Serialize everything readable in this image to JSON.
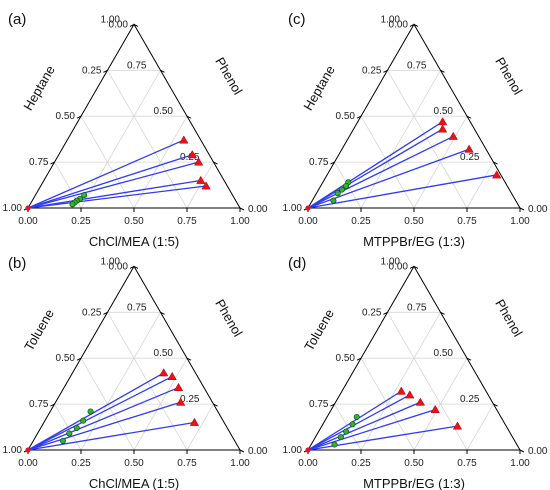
{
  "chart_data": [
    {
      "type": "ternary",
      "panel_label": "(a)",
      "axes": {
        "bottom": "ChCl/MEA (1:5)",
        "right": "Phenol",
        "left": "Heptane"
      },
      "ticks": [
        "0.00",
        "0.25",
        "0.50",
        "0.75",
        "1.00"
      ],
      "grid": true,
      "feed_point": {
        "des": 0.0,
        "phenol": 0.0
      },
      "tie_lines": [
        {
          "raffinate": {
            "des": 0.23,
            "phenol": 0.07
          },
          "extract": {
            "des": 0.55,
            "phenol": 0.37
          }
        },
        {
          "raffinate": {
            "des": 0.22,
            "phenol": 0.05
          },
          "extract": {
            "des": 0.63,
            "phenol": 0.29
          }
        },
        {
          "raffinate": {
            "des": 0.21,
            "phenol": 0.04
          },
          "extract": {
            "des": 0.68,
            "phenol": 0.25
          }
        },
        {
          "raffinate": {
            "des": 0.205,
            "phenol": 0.03
          },
          "extract": {
            "des": 0.74,
            "phenol": 0.15
          }
        },
        {
          "raffinate": {
            "des": 0.2,
            "phenol": 0.02
          },
          "extract": {
            "des": 0.78,
            "phenol": 0.12
          }
        }
      ]
    },
    {
      "type": "ternary",
      "panel_label": "(c)",
      "axes": {
        "bottom": "MTPPBr/EG (1:3)",
        "right": "Phenol",
        "left": "Heptane"
      },
      "ticks": [
        "0.00",
        "0.25",
        "0.50",
        "0.75",
        "1.00"
      ],
      "grid": true,
      "feed_point": {
        "des": 0.0,
        "phenol": 0.0
      },
      "tie_lines": [
        {
          "raffinate": {
            "des": 0.12,
            "phenol": 0.14
          },
          "extract": {
            "des": 0.4,
            "phenol": 0.47
          }
        },
        {
          "raffinate": {
            "des": 0.12,
            "phenol": 0.12
          },
          "extract": {
            "des": 0.42,
            "phenol": 0.43
          }
        },
        {
          "raffinate": {
            "des": 0.11,
            "phenol": 0.1
          },
          "extract": {
            "des": 0.49,
            "phenol": 0.39
          }
        },
        {
          "raffinate": {
            "des": 0.1,
            "phenol": 0.08
          },
          "extract": {
            "des": 0.6,
            "phenol": 0.32
          }
        },
        {
          "raffinate": {
            "des": 0.1,
            "phenol": 0.04
          },
          "extract": {
            "des": 0.8,
            "phenol": 0.18
          }
        }
      ]
    },
    {
      "type": "ternary",
      "panel_label": "(b)",
      "axes": {
        "bottom": "ChCl/MEA (1:5)",
        "right": "Phenol",
        "left": "Toluene"
      },
      "ticks": [
        "0.00",
        "0.25",
        "0.50",
        "0.75",
        "1.00"
      ],
      "grid": true,
      "feed_point": {
        "des": 0.0,
        "phenol": 0.0
      },
      "tie_lines": [
        {
          "raffinate": {
            "des": 0.19,
            "phenol": 0.21
          },
          "extract": {
            "des": 0.43,
            "phenol": 0.42
          }
        },
        {
          "raffinate": {
            "des": 0.18,
            "phenol": 0.16
          },
          "extract": {
            "des": 0.48,
            "phenol": 0.4
          }
        },
        {
          "raffinate": {
            "des": 0.17,
            "phenol": 0.12
          },
          "extract": {
            "des": 0.54,
            "phenol": 0.34
          }
        },
        {
          "raffinate": {
            "des": 0.15,
            "phenol": 0.09
          },
          "extract": {
            "des": 0.59,
            "phenol": 0.26
          }
        },
        {
          "raffinate": {
            "des": 0.14,
            "phenol": 0.05
          },
          "extract": {
            "des": 0.71,
            "phenol": 0.15
          }
        }
      ]
    },
    {
      "type": "ternary",
      "panel_label": "(d)",
      "axes": {
        "bottom": "MTPPBr/EG (1:3)",
        "right": "Phenol",
        "left": "Toluene"
      },
      "ticks": [
        "0.00",
        "0.25",
        "0.50",
        "0.75",
        "1.00"
      ],
      "grid": true,
      "feed_point": {
        "des": 0.0,
        "phenol": 0.0
      },
      "tie_lines": [
        {
          "raffinate": {
            "des": 0.14,
            "phenol": 0.18
          },
          "extract": {
            "des": 0.28,
            "phenol": 0.32
          }
        },
        {
          "raffinate": {
            "des": 0.14,
            "phenol": 0.14
          },
          "extract": {
            "des": 0.33,
            "phenol": 0.3
          }
        },
        {
          "raffinate": {
            "des": 0.13,
            "phenol": 0.1
          },
          "extract": {
            "des": 0.4,
            "phenol": 0.26
          }
        },
        {
          "raffinate": {
            "des": 0.12,
            "phenol": 0.07
          },
          "extract": {
            "des": 0.49,
            "phenol": 0.22
          }
        },
        {
          "raffinate": {
            "des": 0.11,
            "phenol": 0.03
          },
          "extract": {
            "des": 0.64,
            "phenol": 0.13
          }
        }
      ]
    }
  ]
}
